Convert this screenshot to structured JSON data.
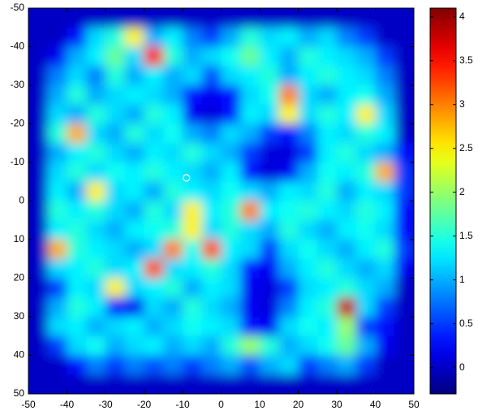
{
  "chart_data": {
    "type": "heatmap",
    "colormap": "jet",
    "xlim": [
      -50,
      50
    ],
    "ylim": [
      -50,
      50
    ],
    "y_reversed": true,
    "xticks": [
      -50,
      -40,
      -30,
      -20,
      -10,
      0,
      10,
      20,
      30,
      40,
      50
    ],
    "yticks": [
      -50,
      -40,
      -30,
      -20,
      -10,
      0,
      10,
      20,
      30,
      40,
      50
    ],
    "clim": [
      -0.3,
      4.1
    ],
    "cticks": [
      0,
      0.5,
      1,
      1.5,
      2,
      2.5,
      3,
      3.5,
      4
    ],
    "marker": {
      "x": -9,
      "y": -6,
      "color": "#ffffff"
    },
    "z": [
      [
        0,
        0,
        0,
        0,
        0,
        0,
        0,
        0,
        0,
        0,
        0,
        0,
        0,
        0,
        0,
        0,
        0,
        0,
        0,
        0
      ],
      [
        0,
        0,
        0.3,
        1.2,
        1.5,
        2.5,
        1.0,
        1.3,
        0.8,
        0.5,
        1.0,
        1.5,
        1.2,
        1.3,
        1.0,
        1.2,
        0.8,
        0.5,
        0,
        0
      ],
      [
        0,
        0.2,
        1.0,
        1.3,
        1.8,
        1.2,
        3.5,
        1.5,
        1.0,
        1.2,
        1.4,
        1.8,
        1.3,
        1.0,
        1.5,
        1.3,
        1.2,
        1.0,
        0.5,
        0
      ],
      [
        0,
        0.8,
        1.2,
        0.8,
        1.5,
        1.0,
        1.3,
        1.0,
        1.2,
        0.6,
        1.2,
        1.3,
        1.5,
        1.0,
        1.3,
        1.5,
        1.3,
        1.2,
        0.8,
        0
      ],
      [
        0,
        1.0,
        1.5,
        1.0,
        1.2,
        1.3,
        1.2,
        1.0,
        0.3,
        0.2,
        0.3,
        1.2,
        1.4,
        3.0,
        1.2,
        1.0,
        1.3,
        1.4,
        1.0,
        0
      ],
      [
        0,
        1.2,
        1.0,
        1.5,
        1.2,
        1.0,
        1.5,
        1.3,
        0.2,
        0.1,
        0.3,
        1.3,
        1.2,
        2.5,
        1.2,
        1.5,
        1.3,
        2.5,
        1.2,
        0
      ],
      [
        0,
        1.5,
        2.8,
        1.2,
        1.0,
        1.5,
        1.2,
        1.4,
        1.0,
        0.8,
        1.2,
        1.0,
        0.5,
        0.3,
        0.8,
        1.3,
        1.2,
        1.5,
        1.3,
        0
      ],
      [
        0,
        1.0,
        1.3,
        1.5,
        1.2,
        1.0,
        1.3,
        1.2,
        1.5,
        1.2,
        1.0,
        0.5,
        0.1,
        0.1,
        0.5,
        1.3,
        1.5,
        1.2,
        1.0,
        0.3
      ],
      [
        0,
        1.2,
        1.5,
        1.2,
        1.4,
        1.3,
        1.5,
        1.3,
        1.2,
        1.0,
        1.3,
        0.3,
        0.1,
        0.2,
        1.0,
        1.4,
        1.3,
        1.5,
        2.8,
        0.5
      ],
      [
        0,
        1.3,
        1.0,
        2.5,
        1.2,
        1.3,
        1.0,
        1.5,
        1.3,
        1.2,
        1.4,
        1.2,
        1.0,
        1.3,
        1.2,
        1.5,
        1.0,
        1.3,
        1.2,
        0.5
      ],
      [
        0,
        1.5,
        1.3,
        1.5,
        1.2,
        1.0,
        1.5,
        1.2,
        2.5,
        1.3,
        1.5,
        3.0,
        1.3,
        1.4,
        1.5,
        1.3,
        1.2,
        1.5,
        1.3,
        0.3
      ],
      [
        0,
        1.3,
        1.5,
        1.2,
        1.0,
        1.3,
        1.4,
        1.5,
        2.5,
        1.2,
        1.5,
        1.2,
        1.0,
        1.5,
        1.2,
        1.0,
        1.3,
        1.4,
        1.2,
        0.3
      ],
      [
        0,
        2.8,
        1.5,
        1.3,
        1.2,
        1.0,
        1.2,
        3.0,
        1.4,
        3.2,
        1.3,
        1.2,
        0.5,
        1.2,
        1.4,
        1.2,
        1.0,
        1.3,
        1.5,
        0.5
      ],
      [
        0,
        1.2,
        1.3,
        1.5,
        1.2,
        1.3,
        3.2,
        1.2,
        1.3,
        1.5,
        1.2,
        0.3,
        0.2,
        1.0,
        1.3,
        1.5,
        1.2,
        1.0,
        1.2,
        0.2
      ],
      [
        0,
        0.5,
        1.3,
        1.2,
        2.5,
        1.2,
        1.3,
        1.5,
        1.0,
        1.3,
        1.2,
        0.2,
        0.1,
        0.5,
        1.2,
        1.3,
        1.5,
        1.2,
        1.0,
        0
      ],
      [
        0,
        1.0,
        1.5,
        1.3,
        0.3,
        0.2,
        1.2,
        1.0,
        1.5,
        1.2,
        1.0,
        0.2,
        0.1,
        0.8,
        1.3,
        1.5,
        3.8,
        1.2,
        0.5,
        0
      ],
      [
        0,
        1.2,
        1.3,
        1.0,
        1.2,
        1.3,
        1.0,
        1.2,
        1.4,
        1.3,
        1.2,
        0.3,
        0.2,
        1.2,
        1.4,
        1.3,
        2.0,
        0.5,
        0.3,
        0
      ],
      [
        0,
        0.5,
        1.2,
        1.4,
        1.0,
        1.2,
        1.3,
        1.0,
        1.2,
        1.0,
        1.5,
        2.0,
        1.5,
        1.0,
        1.2,
        1.4,
        1.8,
        1.0,
        0.2,
        0
      ],
      [
        0,
        0,
        0.3,
        0.8,
        0.5,
        0.8,
        0.6,
        0.8,
        0.5,
        0.8,
        1.0,
        0.6,
        1.0,
        1.2,
        0.5,
        0.8,
        1.0,
        0.5,
        0,
        0
      ],
      [
        0,
        0,
        0,
        0,
        0,
        0,
        0,
        0,
        0,
        0,
        0,
        0,
        0,
        0,
        0,
        0,
        0,
        0,
        0,
        0
      ]
    ]
  }
}
